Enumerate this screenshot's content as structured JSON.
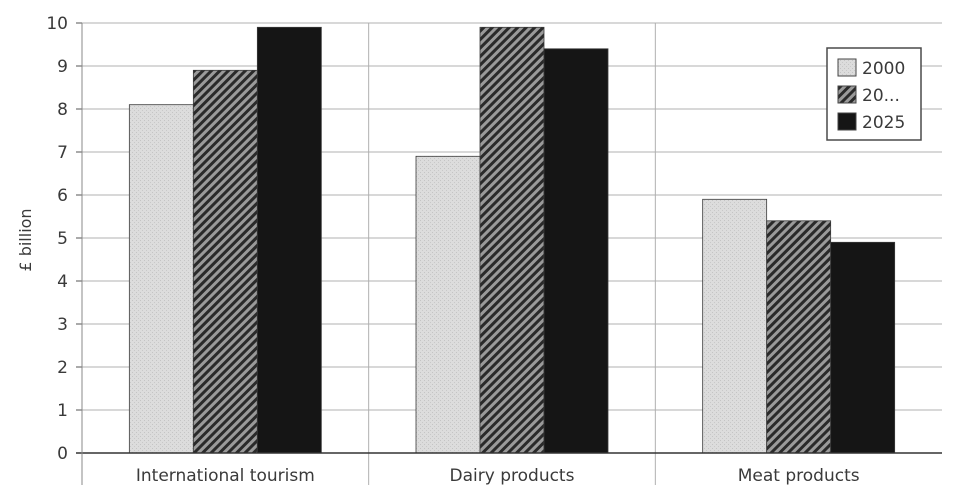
{
  "chart_data": {
    "type": "bar",
    "title": "",
    "xlabel": "",
    "ylabel": "£ billion",
    "ylim": [
      0,
      10
    ],
    "yticks": [
      0,
      1,
      2,
      3,
      4,
      5,
      6,
      7,
      8,
      9,
      10
    ],
    "categories": [
      "International tourism",
      "Dairy products",
      "Meat products"
    ],
    "series": [
      {
        "name": "2000",
        "values": [
          8.1,
          6.9,
          5.9
        ],
        "color": "#d9d9d9",
        "pattern": "light"
      },
      {
        "name": "20...",
        "values": [
          8.9,
          9.9,
          5.4
        ],
        "color": "#555555",
        "pattern": "hatched"
      },
      {
        "name": "2025",
        "values": [
          9.9,
          9.4,
          4.9
        ],
        "color": "#141414",
        "pattern": "solid"
      }
    ],
    "grid": true,
    "legend": "top-right"
  }
}
